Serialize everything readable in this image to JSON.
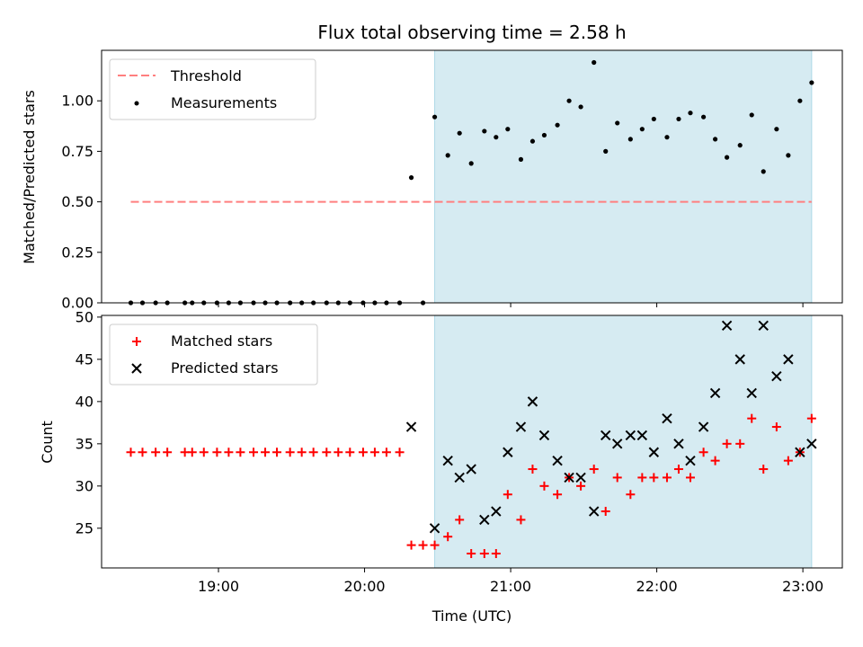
{
  "chart_data": [
    {
      "type": "scatter",
      "title": "Flux total observing time = 2.58 h",
      "xlabel": "",
      "ylabel": "Matched/Predicted stars",
      "xlim": [
        18.2,
        23.27
      ],
      "ylim": [
        0.0,
        1.25
      ],
      "yticks": [
        "0.00",
        "0.25",
        "0.50",
        "0.75",
        "1.00"
      ],
      "shaded_span": [
        20.48,
        23.06
      ],
      "legend_position": "upper-left",
      "threshold": {
        "name": "Threshold",
        "y": 0.5,
        "x_range": [
          18.4,
          23.06
        ],
        "color": "#ff7f7f"
      },
      "series": [
        {
          "name": "Measurements",
          "marker": "dot",
          "color": "#000000",
          "points": [
            [
              18.4,
              0.0
            ],
            [
              18.48,
              0.0
            ],
            [
              18.57,
              0.0
            ],
            [
              18.65,
              0.0
            ],
            [
              18.77,
              0.0
            ],
            [
              18.82,
              0.0
            ],
            [
              18.9,
              0.0
            ],
            [
              18.99,
              0.0
            ],
            [
              19.07,
              0.0
            ],
            [
              19.15,
              0.0
            ],
            [
              19.24,
              0.0
            ],
            [
              19.32,
              0.0
            ],
            [
              19.4,
              0.0
            ],
            [
              19.49,
              0.0
            ],
            [
              19.57,
              0.0
            ],
            [
              19.65,
              0.0
            ],
            [
              19.74,
              0.0
            ],
            [
              19.82,
              0.0
            ],
            [
              19.9,
              0.0
            ],
            [
              19.99,
              0.0
            ],
            [
              20.07,
              0.0
            ],
            [
              20.15,
              0.0
            ],
            [
              20.24,
              0.0
            ],
            [
              20.32,
              0.62
            ],
            [
              20.4,
              0.0
            ],
            [
              20.48,
              0.92
            ],
            [
              20.57,
              0.73
            ],
            [
              20.65,
              0.84
            ],
            [
              20.73,
              0.69
            ],
            [
              20.82,
              0.85
            ],
            [
              20.9,
              0.82
            ],
            [
              20.98,
              0.86
            ],
            [
              21.07,
              0.71
            ],
            [
              21.15,
              0.8
            ],
            [
              21.23,
              0.83
            ],
            [
              21.32,
              0.88
            ],
            [
              21.4,
              1.0
            ],
            [
              21.48,
              0.97
            ],
            [
              21.57,
              1.19
            ],
            [
              21.65,
              0.75
            ],
            [
              21.73,
              0.89
            ],
            [
              21.82,
              0.81
            ],
            [
              21.9,
              0.86
            ],
            [
              21.98,
              0.91
            ],
            [
              22.07,
              0.82
            ],
            [
              22.15,
              0.91
            ],
            [
              22.23,
              0.94
            ],
            [
              22.32,
              0.92
            ],
            [
              22.4,
              0.81
            ],
            [
              22.48,
              0.72
            ],
            [
              22.57,
              0.78
            ],
            [
              22.65,
              0.93
            ],
            [
              22.73,
              0.65
            ],
            [
              22.82,
              0.86
            ],
            [
              22.9,
              0.73
            ],
            [
              22.98,
              1.0
            ],
            [
              23.06,
              1.09
            ]
          ]
        }
      ]
    },
    {
      "type": "scatter",
      "title": "",
      "xlabel": "Time (UTC)",
      "ylabel": "Count",
      "xlim": [
        18.2,
        23.27
      ],
      "ylim": [
        20.3,
        50.2
      ],
      "yticks": [
        "25",
        "30",
        "35",
        "40",
        "45",
        "50"
      ],
      "xticks": [
        "19:00",
        "20:00",
        "21:00",
        "22:00",
        "23:00"
      ],
      "shaded_span": [
        20.48,
        23.06
      ],
      "legend_position": "upper-left",
      "series": [
        {
          "name": "Matched stars",
          "marker": "plus",
          "color": "#ff0000",
          "points": [
            [
              18.4,
              34
            ],
            [
              18.48,
              34
            ],
            [
              18.57,
              34
            ],
            [
              18.65,
              34
            ],
            [
              18.77,
              34
            ],
            [
              18.82,
              34
            ],
            [
              18.9,
              34
            ],
            [
              18.99,
              34
            ],
            [
              19.07,
              34
            ],
            [
              19.15,
              34
            ],
            [
              19.24,
              34
            ],
            [
              19.32,
              34
            ],
            [
              19.4,
              34
            ],
            [
              19.49,
              34
            ],
            [
              19.57,
              34
            ],
            [
              19.65,
              34
            ],
            [
              19.74,
              34
            ],
            [
              19.82,
              34
            ],
            [
              19.9,
              34
            ],
            [
              19.99,
              34
            ],
            [
              20.07,
              34
            ],
            [
              20.15,
              34
            ],
            [
              20.24,
              34
            ],
            [
              20.32,
              23
            ],
            [
              20.4,
              23
            ],
            [
              20.48,
              23
            ],
            [
              20.57,
              24
            ],
            [
              20.65,
              26
            ],
            [
              20.73,
              22
            ],
            [
              20.82,
              22
            ],
            [
              20.9,
              22
            ],
            [
              20.98,
              29
            ],
            [
              21.07,
              26
            ],
            [
              21.15,
              32
            ],
            [
              21.23,
              30
            ],
            [
              21.32,
              29
            ],
            [
              21.4,
              31
            ],
            [
              21.48,
              30
            ],
            [
              21.57,
              32
            ],
            [
              21.65,
              27
            ],
            [
              21.73,
              31
            ],
            [
              21.82,
              29
            ],
            [
              21.9,
              31
            ],
            [
              21.98,
              31
            ],
            [
              22.07,
              31
            ],
            [
              22.15,
              32
            ],
            [
              22.23,
              31
            ],
            [
              22.32,
              34
            ],
            [
              22.4,
              33
            ],
            [
              22.48,
              35
            ],
            [
              22.57,
              35
            ],
            [
              22.65,
              38
            ],
            [
              22.73,
              32
            ],
            [
              22.82,
              37
            ],
            [
              22.9,
              33
            ],
            [
              22.98,
              34
            ],
            [
              23.06,
              38
            ]
          ]
        },
        {
          "name": "Predicted stars",
          "marker": "x",
          "color": "#000000",
          "points": [
            [
              20.32,
              37
            ],
            [
              20.48,
              25
            ],
            [
              20.57,
              33
            ],
            [
              20.65,
              31
            ],
            [
              20.73,
              32
            ],
            [
              20.82,
              26
            ],
            [
              20.9,
              27
            ],
            [
              20.98,
              34
            ],
            [
              21.07,
              37
            ],
            [
              21.15,
              40
            ],
            [
              21.23,
              36
            ],
            [
              21.32,
              33
            ],
            [
              21.4,
              31
            ],
            [
              21.48,
              31
            ],
            [
              21.57,
              27
            ],
            [
              21.65,
              36
            ],
            [
              21.73,
              35
            ],
            [
              21.82,
              36
            ],
            [
              21.9,
              36
            ],
            [
              21.98,
              34
            ],
            [
              22.07,
              38
            ],
            [
              22.15,
              35
            ],
            [
              22.23,
              33
            ],
            [
              22.32,
              37
            ],
            [
              22.4,
              41
            ],
            [
              22.48,
              49
            ],
            [
              22.57,
              45
            ],
            [
              22.65,
              41
            ],
            [
              22.73,
              49
            ],
            [
              22.82,
              43
            ],
            [
              22.9,
              45
            ],
            [
              22.98,
              34
            ],
            [
              23.06,
              35
            ]
          ]
        }
      ]
    }
  ]
}
